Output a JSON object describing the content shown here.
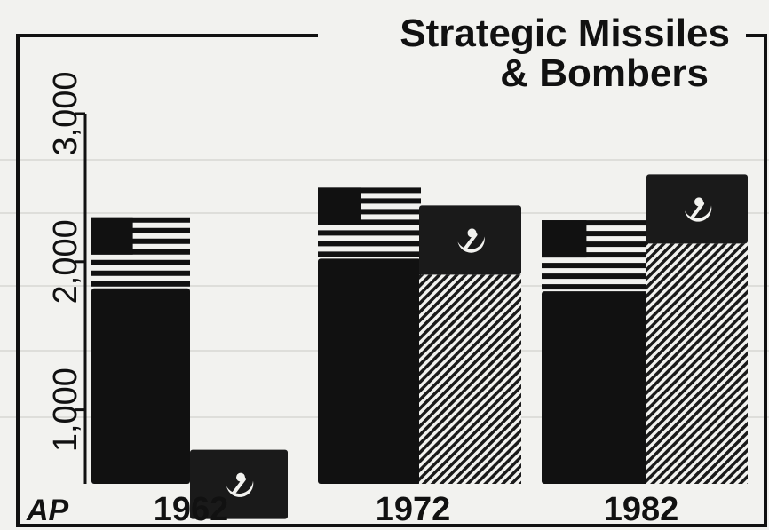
{
  "chart_data": {
    "type": "bar",
    "title_line1": "Strategic Missiles",
    "title_line2": "& Bombers",
    "credit": "AP",
    "categories": [
      "1962",
      "1972",
      "1982"
    ],
    "series": [
      {
        "values": [
          2300,
          2500,
          2280
        ],
        "colors": {
          "fill": "#111111"
        },
        "icon": "us-flag-icon"
      },
      {
        "values": [
          730,
          2380,
          2590
        ],
        "colors": {
          "fill": "#1a1a1a"
        },
        "icon": "hammer-sickle-icon"
      }
    ],
    "yticks": [
      "1,000",
      "2,000",
      "3,000"
    ],
    "ytick_values": [
      1000,
      2000,
      3000
    ],
    "ylim": [
      0,
      3000
    ],
    "grid": true,
    "legend": "none"
  }
}
